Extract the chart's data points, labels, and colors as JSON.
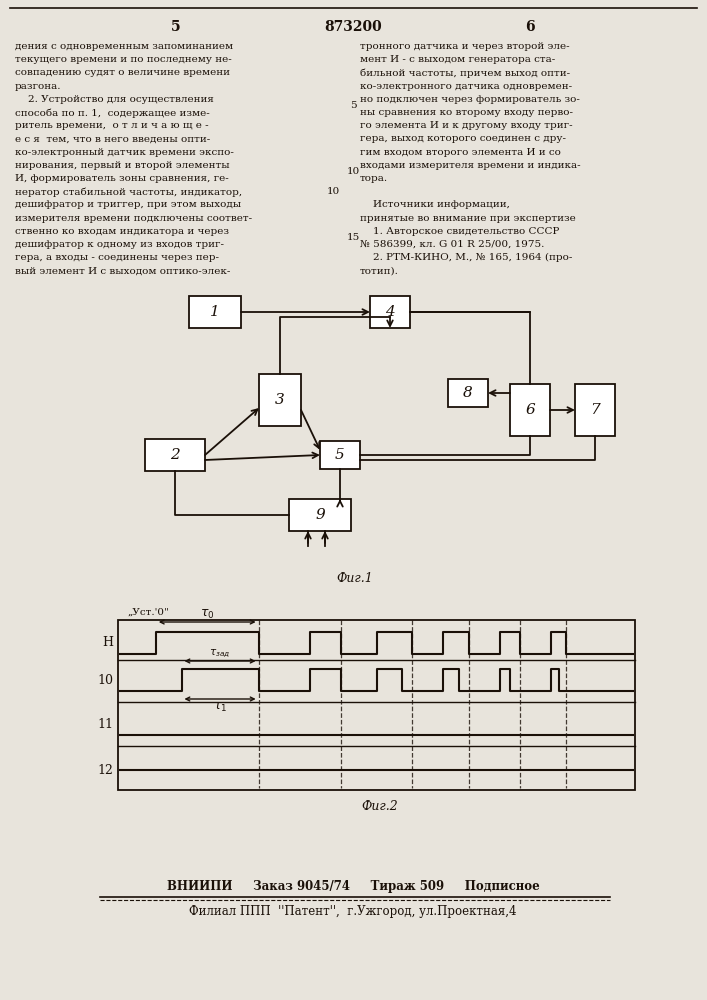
{
  "page_number_left": "5",
  "page_number_center": "873200",
  "page_number_right": "6",
  "col_left_text": [
    "дения с одновременным запоминанием",
    "текущего времени и по последнему не-",
    "совпадению судят о величине времени",
    "разгона.",
    "    2. Устройство для осуществления",
    "способа по п. 1,  содержащее изме-",
    "ритель времени,  о т л и ч а ю щ е -",
    "е с я  тем, что в него введены опти-",
    "ко-электронный датчик времени экспо-",
    "нирования, первый и второй элементы",
    "И, формирователь зоны сравнения, ге-",
    "нератор стабильной частоты, индикатор,10",
    "дешифратор и триггер, при этом выходы",
    "измерителя времени подключены соответ-",
    "ственно ко входам индикатора и через",
    "дешифратор к одному из входов триг-",
    "гера, а входы - соединены через пер-",
    "вый элемент И с выходом оптико-элек-"
  ],
  "col_right_text": [
    "тронного датчика и через второй эле-",
    "мент И - с выходом генератора ста-",
    "бильной частоты, причем выход опти-",
    "ко-электронного датчика одновремен-",
    "но подключен через формирователь зо-",
    "ны сравнения ко второму входу перво-",
    "го элемента И и к другому входу триг-",
    "гера, выход которого соединен с дру-",
    "гим входом второго элемента И и со",
    "входами измерителя времени и индика-",
    "тора.",
    "",
    "    Источники информации,",
    "принятые во внимание при экспертизе",
    "    1. Авторское свидетельство СССР",
    "№ 586399, кл. G 01 R 25/00, 1975.",
    "    2. РТМ-КИНО, М., № 165, 1964 (про-",
    "тотип)."
  ],
  "line_number_5": "5",
  "line_number_10": "10",
  "line_number_15": "15",
  "fig1_label": "Фиг.1",
  "fig2_label": "Фиг.2",
  "footer_line1": "ВНИИПИ     Заказ 9045/74     Тираж 509     Подписное",
  "footer_line2": "Филиал ППП  ''Патент'',  г.Ужгород, ул.Проектная,4",
  "background_color": "#e8e4dc",
  "text_color": "#1a1008",
  "box_color": "#1a1008"
}
